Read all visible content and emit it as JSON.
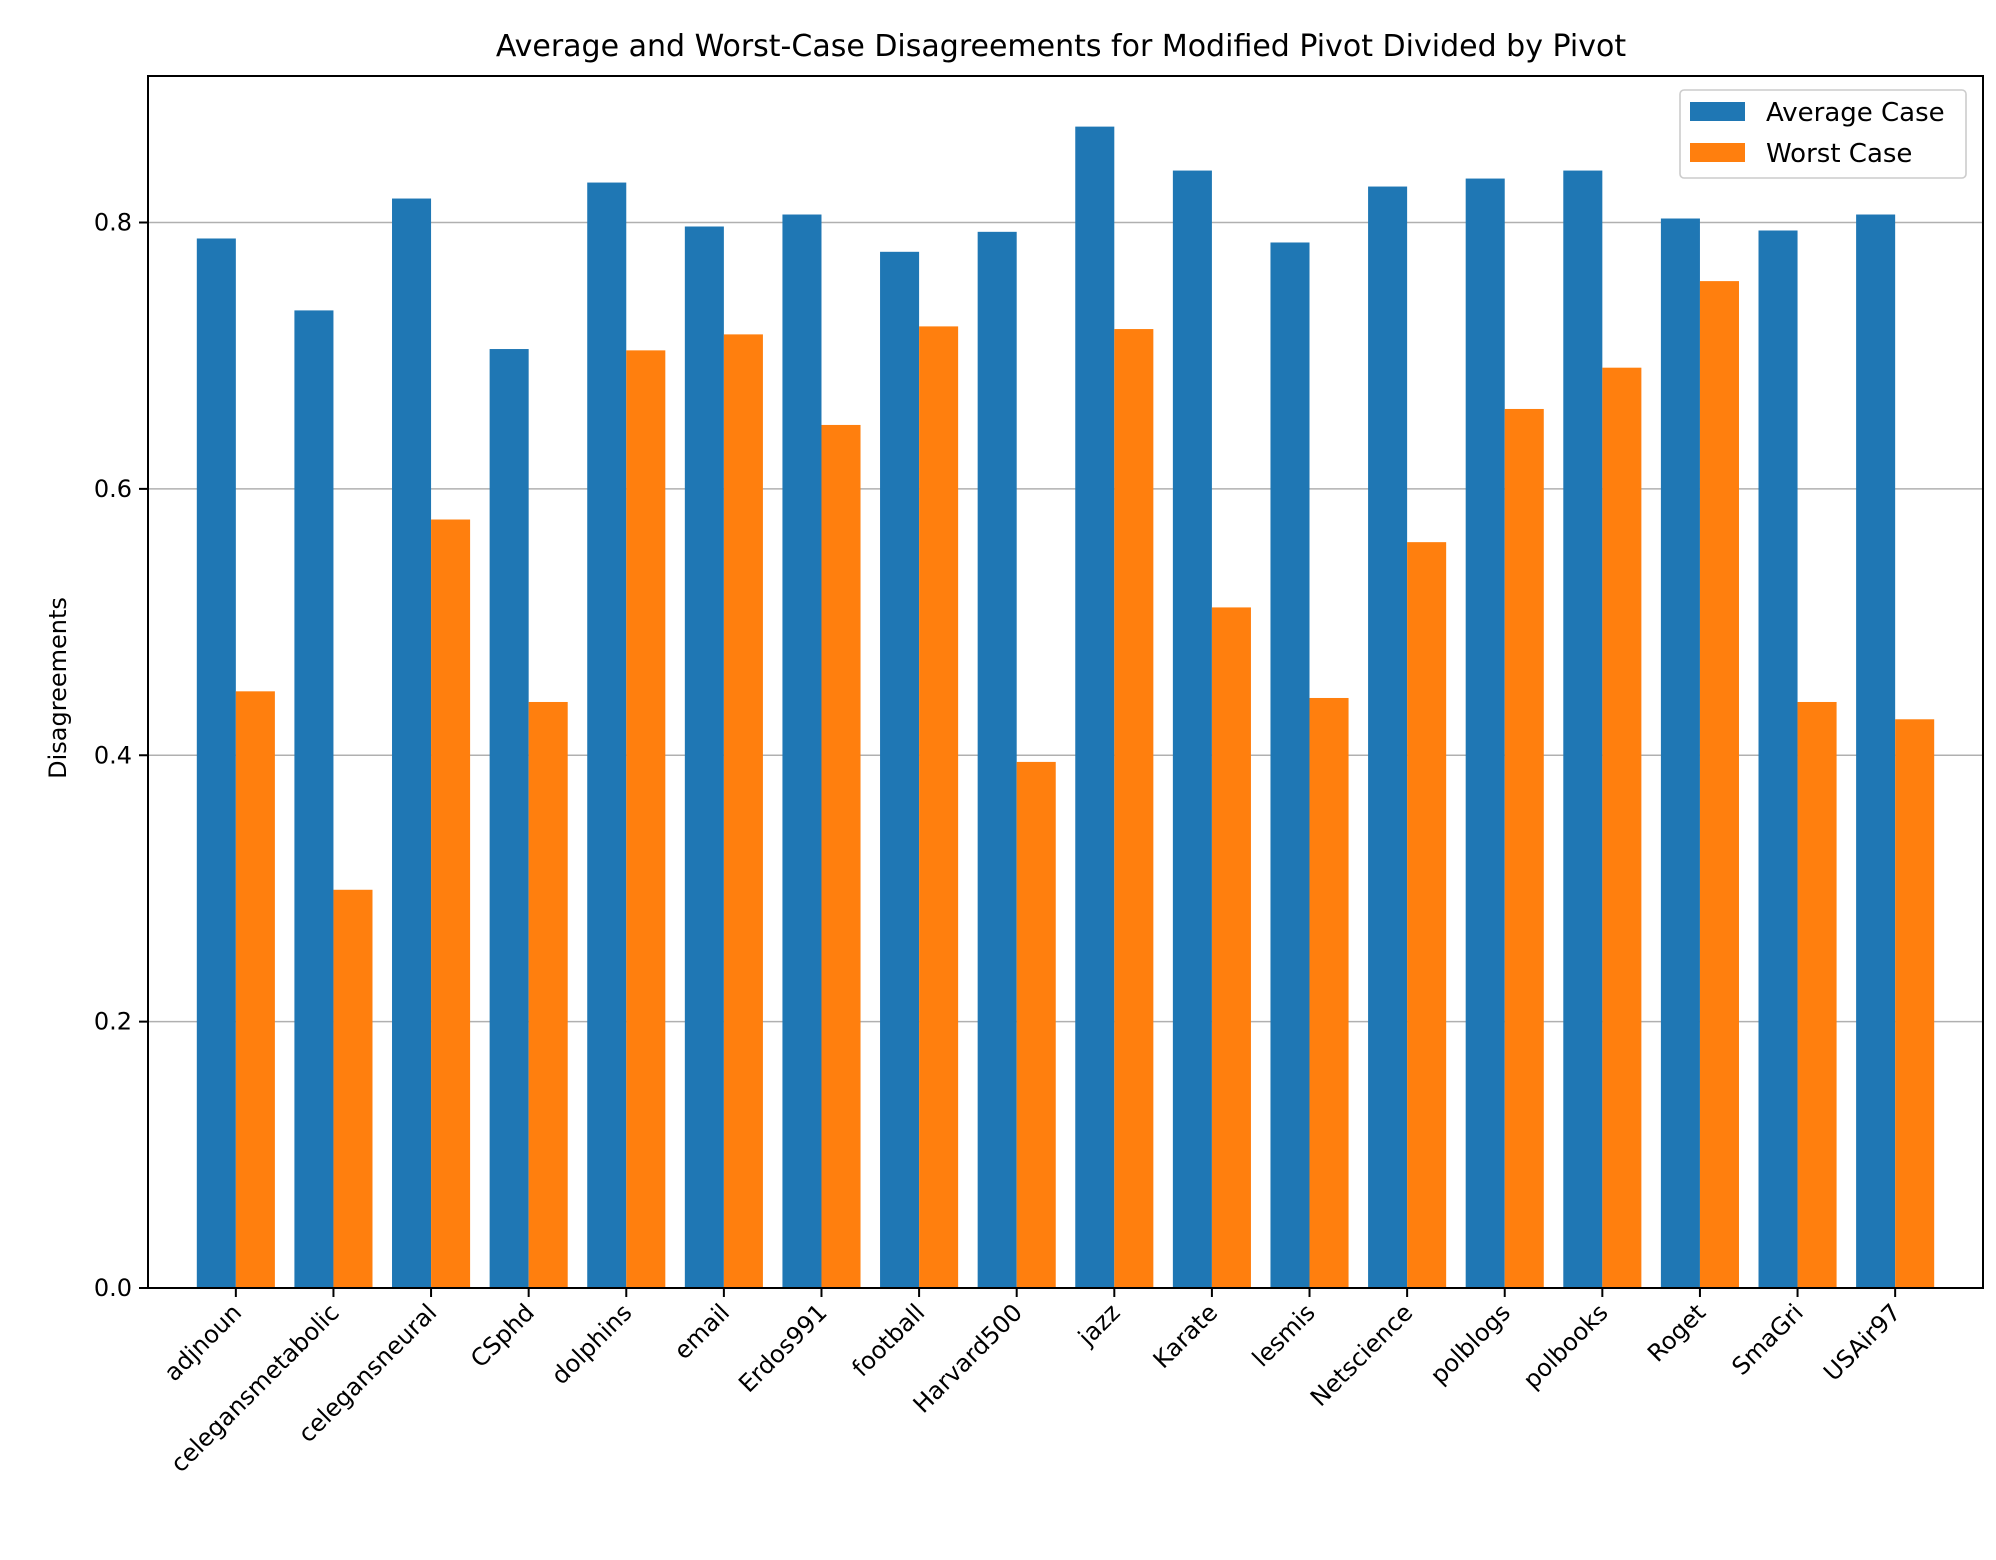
{
  "chart_data": {
    "type": "bar",
    "title": "Average and Worst-Case Disagreements for Modified Pivot Divided by Pivot",
    "xlabel": "",
    "ylabel": "Disagreements",
    "ylim": [
      0,
      0.91
    ],
    "yticks": [
      0.0,
      0.2,
      0.4,
      0.6,
      0.8
    ],
    "ytick_labels": [
      "0.0",
      "0.2",
      "0.4",
      "0.6",
      "0.8"
    ],
    "grid": "horizontal",
    "legend_position": "top-right",
    "categories": [
      "adjnoun",
      "celegansmetabolic",
      "celegansneural",
      "CSphd",
      "dolphins",
      "email",
      "Erdos991",
      "football",
      "Harvard500",
      "jazz",
      "Karate",
      "lesmis",
      "Netscience",
      "polblogs",
      "polbooks",
      "Roget",
      "SmaGri",
      "USAir97"
    ],
    "series": [
      {
        "name": "Average Case",
        "color": "#1f77b4",
        "values": [
          0.788,
          0.734,
          0.818,
          0.705,
          0.83,
          0.797,
          0.806,
          0.778,
          0.793,
          0.872,
          0.839,
          0.785,
          0.827,
          0.833,
          0.839,
          0.803,
          0.794,
          0.806
        ]
      },
      {
        "name": "Worst Case",
        "color": "#ff7f0e",
        "values": [
          0.448,
          0.299,
          0.577,
          0.44,
          0.704,
          0.716,
          0.648,
          0.722,
          0.395,
          0.72,
          0.511,
          0.443,
          0.56,
          0.66,
          0.691,
          0.756,
          0.44,
          0.427
        ]
      }
    ]
  }
}
